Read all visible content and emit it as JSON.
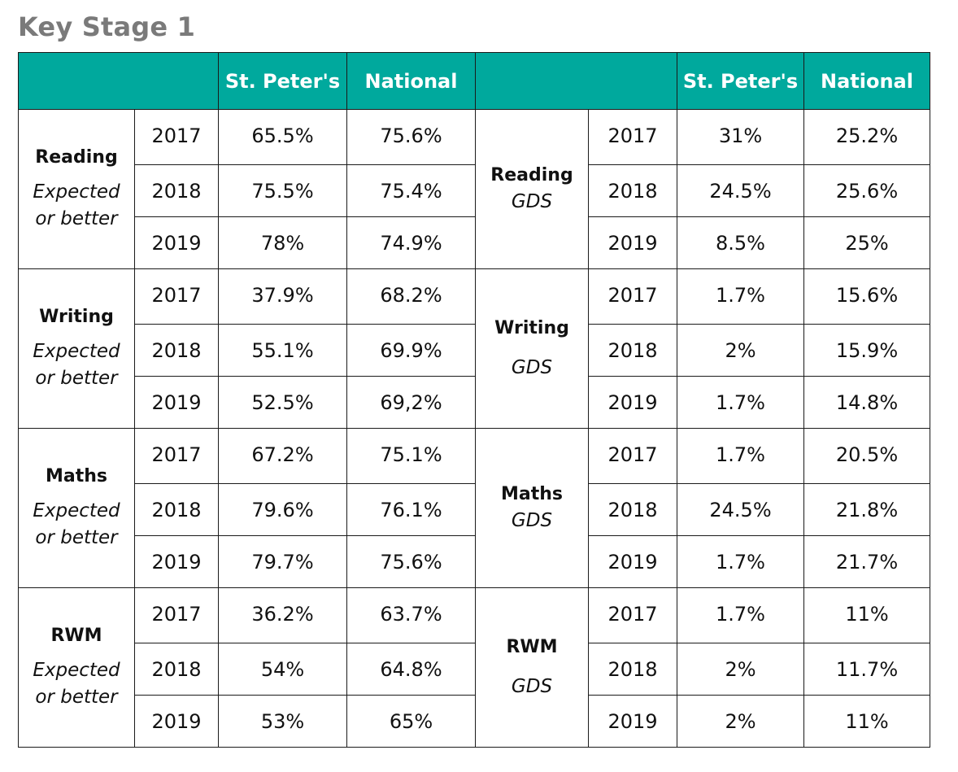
{
  "title": "Key Stage 1",
  "header": {
    "school": "St. Peter's",
    "national": "National"
  },
  "left_block": [
    {
      "subject": "Reading",
      "qualifier": [
        "Expected",
        "or better"
      ],
      "rows": [
        {
          "year": "2017",
          "school": "65.5%",
          "national": "75.6%"
        },
        {
          "year": "2018",
          "school": "75.5%",
          "national": "75.4%"
        },
        {
          "year": "2019",
          "school": "78%",
          "national": "74.9%"
        }
      ]
    },
    {
      "subject": "Writing",
      "qualifier": [
        "Expected",
        "or better"
      ],
      "rows": [
        {
          "year": "2017",
          "school": "37.9%",
          "national": "68.2%"
        },
        {
          "year": "2018",
          "school": "55.1%",
          "national": "69.9%"
        },
        {
          "year": "2019",
          "school": "52.5%",
          "national": "69,2%"
        }
      ]
    },
    {
      "subject": "Maths",
      "qualifier": [
        "Expected",
        "or better"
      ],
      "rows": [
        {
          "year": "2017",
          "school": "67.2%",
          "national": "75.1%"
        },
        {
          "year": "2018",
          "school": "79.6%",
          "national": "76.1%"
        },
        {
          "year": "2019",
          "school": "79.7%",
          "national": "75.6%"
        }
      ]
    },
    {
      "subject": "RWM",
      "qualifier": [
        "Expected",
        "or better"
      ],
      "rows": [
        {
          "year": "2017",
          "school": "36.2%",
          "national": "63.7%"
        },
        {
          "year": "2018",
          "school": "54%",
          "national": "64.8%"
        },
        {
          "year": "2019",
          "school": "53%",
          "national": "65%"
        }
      ]
    }
  ],
  "right_block": [
    {
      "subject": "Reading",
      "qualifier": "GDS",
      "rows": [
        {
          "year": "2017",
          "school": "31%",
          "national": "25.2%"
        },
        {
          "year": "2018",
          "school": "24.5%",
          "national": "25.6%"
        },
        {
          "year": "2019",
          "school": "8.5%",
          "national": "25%"
        }
      ]
    },
    {
      "subject": "Writing",
      "qualifier": "GDS",
      "rows": [
        {
          "year": "2017",
          "school": "1.7%",
          "national": "15.6%"
        },
        {
          "year": "2018",
          "school": "2%",
          "national": "15.9%"
        },
        {
          "year": "2019",
          "school": "1.7%",
          "national": "14.8%"
        }
      ]
    },
    {
      "subject": "Maths",
      "qualifier": "GDS",
      "rows": [
        {
          "year": "2017",
          "school": "1.7%",
          "national": "20.5%"
        },
        {
          "year": "2018",
          "school": "24.5%",
          "national": "21.8%"
        },
        {
          "year": "2019",
          "school": "1.7%",
          "national": "21.7%"
        }
      ]
    },
    {
      "subject": "RWM",
      "qualifier": "GDS",
      "rows": [
        {
          "year": "2017",
          "school": "1.7%",
          "national": "11%"
        },
        {
          "year": "2018",
          "school": "2%",
          "national": "11.7%"
        },
        {
          "year": "2019",
          "school": "2%",
          "national": "11%"
        }
      ]
    }
  ]
}
